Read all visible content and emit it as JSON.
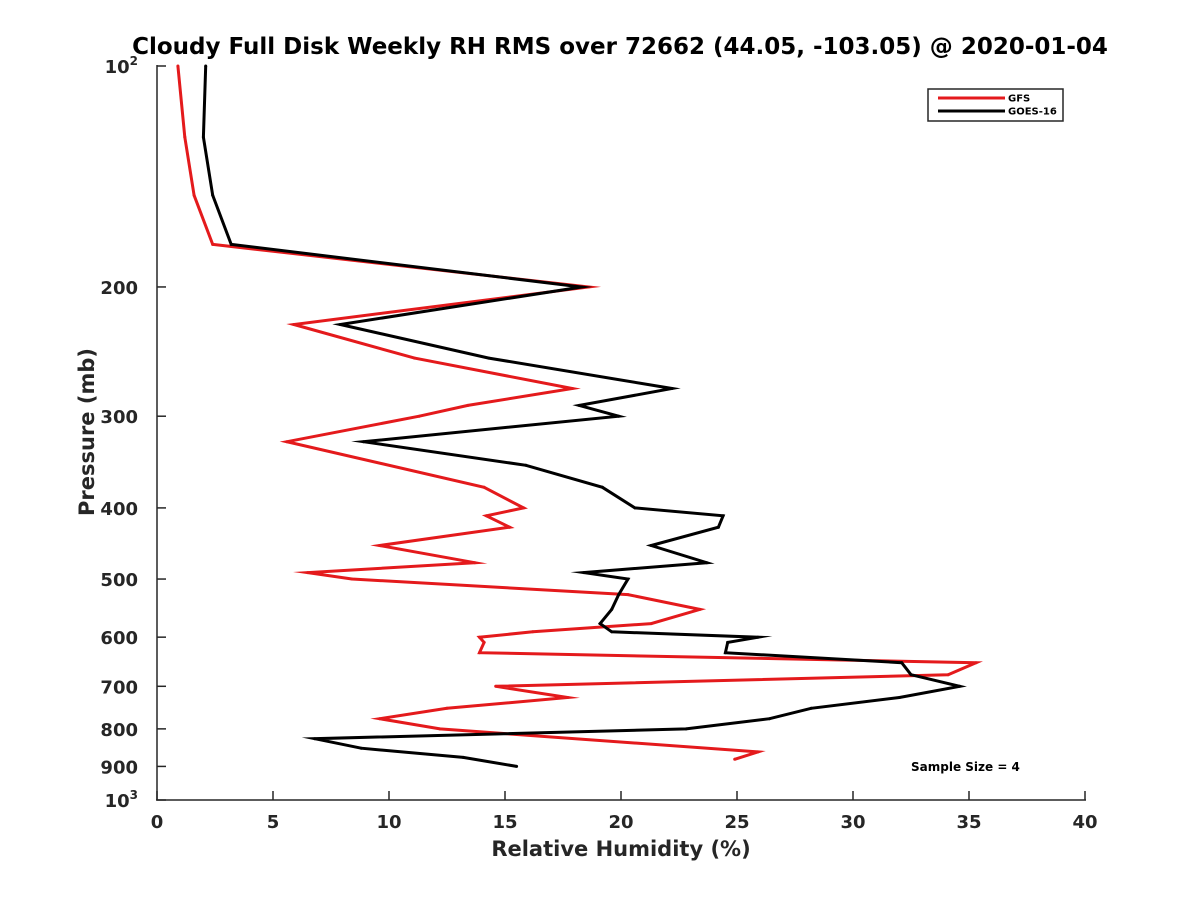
{
  "chart_data": {
    "type": "line",
    "title": "Cloudy Full Disk Weekly RH RMS over 72662 (44.05, -103.05) @ 2020-01-04",
    "xlabel": "Relative Humidity (%)",
    "ylabel": "Pressure (mb)",
    "xlim": [
      0,
      40
    ],
    "ylim": [
      100,
      1000
    ],
    "y_scale": "log",
    "y_reversed": true,
    "grid": false,
    "legend_position": "top-right",
    "x_ticks": [
      0,
      5,
      10,
      15,
      20,
      25,
      30,
      35,
      40
    ],
    "y_ticks": [
      {
        "value": 100,
        "label": "10",
        "sup": "2"
      },
      {
        "value": 200,
        "label": "200",
        "sup": ""
      },
      {
        "value": 300,
        "label": "300",
        "sup": ""
      },
      {
        "value": 400,
        "label": "400",
        "sup": ""
      },
      {
        "value": 500,
        "label": "500",
        "sup": ""
      },
      {
        "value": 600,
        "label": "600",
        "sup": ""
      },
      {
        "value": 700,
        "label": "700",
        "sup": ""
      },
      {
        "value": 800,
        "label": "800",
        "sup": ""
      },
      {
        "value": 900,
        "label": "900",
        "sup": ""
      },
      {
        "value": 1000,
        "label": "10",
        "sup": "3"
      }
    ],
    "annotation": "Sample Size = 4",
    "series": [
      {
        "name": "GFS",
        "color": "#e41a1c",
        "points": [
          {
            "x": 0.9,
            "y": 100
          },
          {
            "x": 1.2,
            "y": 125
          },
          {
            "x": 1.6,
            "y": 150
          },
          {
            "x": 2.4,
            "y": 175
          },
          {
            "x": 18.6,
            "y": 200
          },
          {
            "x": 5.9,
            "y": 225
          },
          {
            "x": 11.1,
            "y": 250
          },
          {
            "x": 17.9,
            "y": 275
          },
          {
            "x": 13.4,
            "y": 290
          },
          {
            "x": 11.3,
            "y": 300
          },
          {
            "x": 5.6,
            "y": 325
          },
          {
            "x": 14.1,
            "y": 375
          },
          {
            "x": 15.8,
            "y": 400
          },
          {
            "x": 14.2,
            "y": 410
          },
          {
            "x": 15.2,
            "y": 425
          },
          {
            "x": 9.6,
            "y": 450
          },
          {
            "x": 13.7,
            "y": 475
          },
          {
            "x": 6.5,
            "y": 490
          },
          {
            "x": 8.4,
            "y": 500
          },
          {
            "x": 20.3,
            "y": 525
          },
          {
            "x": 23.4,
            "y": 550
          },
          {
            "x": 21.3,
            "y": 575
          },
          {
            "x": 16.2,
            "y": 590
          },
          {
            "x": 13.9,
            "y": 600
          },
          {
            "x": 14.1,
            "y": 610
          },
          {
            "x": 13.9,
            "y": 630
          },
          {
            "x": 35.3,
            "y": 650
          },
          {
            "x": 34.1,
            "y": 675
          },
          {
            "x": 14.6,
            "y": 700
          },
          {
            "x": 17.7,
            "y": 725
          },
          {
            "x": 12.5,
            "y": 750
          },
          {
            "x": 9.6,
            "y": 775
          },
          {
            "x": 12.2,
            "y": 800
          },
          {
            "x": 25.9,
            "y": 860
          },
          {
            "x": 24.9,
            "y": 880
          }
        ]
      },
      {
        "name": "GOES-16",
        "color": "#000000",
        "points": [
          {
            "x": 2.1,
            "y": 100
          },
          {
            "x": 2.0,
            "y": 125
          },
          {
            "x": 2.4,
            "y": 150
          },
          {
            "x": 3.2,
            "y": 175
          },
          {
            "x": 18.3,
            "y": 200
          },
          {
            "x": 7.9,
            "y": 225
          },
          {
            "x": 14.3,
            "y": 250
          },
          {
            "x": 22.2,
            "y": 275
          },
          {
            "x": 18.2,
            "y": 290
          },
          {
            "x": 19.9,
            "y": 300
          },
          {
            "x": 8.9,
            "y": 325
          },
          {
            "x": 15.9,
            "y": 350
          },
          {
            "x": 19.2,
            "y": 375
          },
          {
            "x": 20.6,
            "y": 400
          },
          {
            "x": 24.4,
            "y": 410
          },
          {
            "x": 24.2,
            "y": 425
          },
          {
            "x": 21.3,
            "y": 450
          },
          {
            "x": 23.7,
            "y": 475
          },
          {
            "x": 18.4,
            "y": 490
          },
          {
            "x": 20.3,
            "y": 500
          },
          {
            "x": 19.9,
            "y": 525
          },
          {
            "x": 19.6,
            "y": 550
          },
          {
            "x": 19.1,
            "y": 575
          },
          {
            "x": 19.6,
            "y": 590
          },
          {
            "x": 25.9,
            "y": 600
          },
          {
            "x": 24.6,
            "y": 610
          },
          {
            "x": 24.5,
            "y": 630
          },
          {
            "x": 32.1,
            "y": 650
          },
          {
            "x": 32.5,
            "y": 675
          },
          {
            "x": 34.6,
            "y": 700
          },
          {
            "x": 32.0,
            "y": 725
          },
          {
            "x": 28.2,
            "y": 750
          },
          {
            "x": 26.4,
            "y": 775
          },
          {
            "x": 22.8,
            "y": 800
          },
          {
            "x": 6.8,
            "y": 825
          },
          {
            "x": 8.8,
            "y": 850
          },
          {
            "x": 13.2,
            "y": 875
          },
          {
            "x": 15.5,
            "y": 900
          }
        ]
      }
    ]
  }
}
